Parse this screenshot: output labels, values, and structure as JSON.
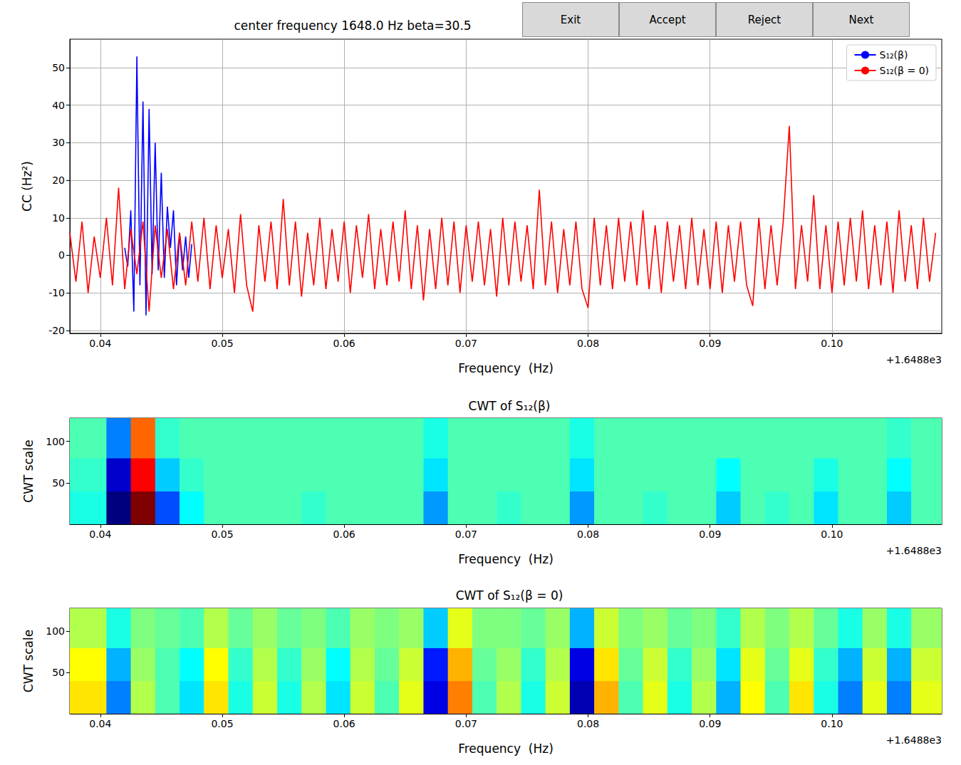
{
  "chart_data": [
    {
      "type": "line",
      "title": "center frequency 1648.0 Hz beta=30.5",
      "xlabel": "Frequency  (Hz)",
      "ylabel": "CC (Hz²)",
      "annotations": [
        "+1.6488e3"
      ],
      "xlim": [
        0.0375,
        0.109
      ],
      "xticks": [
        0.04,
        0.05,
        0.06,
        0.07,
        0.08,
        0.09,
        {
          "value": 0.1,
          "label": "0.10"
        }
      ],
      "ylim": [
        -20.8,
        57.6
      ],
      "yticks": [
        -20,
        -10,
        0,
        10,
        20,
        30,
        40,
        50
      ],
      "grid": true,
      "legend": "upper right",
      "series": [
        {
          "name": "S₁₂(β)",
          "color": "#0000ff",
          "x": [
            0.042,
            0.04225,
            0.0425,
            0.04275,
            0.043,
            0.04325,
            0.0435,
            0.04375,
            0.044,
            0.04425,
            0.0445,
            0.04475,
            0.045,
            0.04525,
            0.0455,
            0.04575,
            0.046,
            0.04625,
            0.0465,
            0.04675,
            0.047,
            0.04725,
            0.0475
          ],
          "values": [
            2,
            -3,
            12,
            -15,
            53,
            -8,
            41,
            -16,
            39,
            -5,
            30,
            -4,
            22,
            -6,
            13,
            2,
            12,
            -8,
            6,
            -4,
            5,
            -6,
            3
          ]
        },
        {
          "name": "S₁₂(β = 0)",
          "color": "#ff0000",
          "x": [
            0.0375,
            0.038,
            0.0385,
            0.039,
            0.0395,
            0.04,
            0.0405,
            0.041,
            0.0415,
            0.042,
            0.0425,
            0.043,
            0.0435,
            0.044,
            0.0445,
            0.045,
            0.0455,
            0.046,
            0.0465,
            0.047,
            0.0475,
            0.048,
            0.0485,
            0.049,
            0.0495,
            0.05,
            0.0505,
            0.051,
            0.0515,
            0.052,
            0.0525,
            0.053,
            0.0535,
            0.054,
            0.0545,
            0.055,
            0.0555,
            0.056,
            0.0565,
            0.057,
            0.0575,
            0.058,
            0.0585,
            0.059,
            0.0595,
            0.06,
            0.0605,
            0.061,
            0.0615,
            0.062,
            0.0625,
            0.063,
            0.0635,
            0.064,
            0.0645,
            0.065,
            0.0655,
            0.066,
            0.0665,
            0.067,
            0.0675,
            0.068,
            0.0685,
            0.069,
            0.0695,
            0.07,
            0.0705,
            0.071,
            0.0715,
            0.072,
            0.0725,
            0.073,
            0.0735,
            0.074,
            0.0745,
            0.075,
            0.0755,
            0.076,
            0.0765,
            0.077,
            0.0775,
            0.078,
            0.0785,
            0.079,
            0.0795,
            0.08,
            0.0805,
            0.081,
            0.0815,
            0.082,
            0.0825,
            0.083,
            0.0835,
            0.084,
            0.0845,
            0.085,
            0.0855,
            0.086,
            0.0865,
            0.087,
            0.0875,
            0.088,
            0.0885,
            0.089,
            0.0895,
            0.09,
            0.0905,
            0.091,
            0.0915,
            0.092,
            0.0925,
            0.093,
            0.0935,
            0.094,
            0.0945,
            0.095,
            0.0955,
            0.096,
            0.0965,
            0.097,
            0.0975,
            0.098,
            0.0985,
            0.099,
            0.0995,
            0.1,
            0.1005,
            0.101,
            0.1015,
            0.102,
            0.1025,
            0.103,
            0.1035,
            0.104,
            0.1045,
            0.105,
            0.1055,
            0.106,
            0.1065,
            0.107,
            0.1075,
            0.108,
            0.1085
          ],
          "values": [
            6,
            -7,
            9,
            -10,
            5,
            -6,
            10,
            -8,
            18,
            -9,
            7,
            -5,
            9,
            -15,
            8,
            -6,
            7,
            -9,
            6,
            -8,
            9,
            -7,
            10,
            -9,
            8,
            -6,
            7,
            -10,
            11,
            -8,
            -15,
            8,
            -7,
            9,
            -9,
            15,
            -8,
            9,
            -11,
            6,
            -8,
            10,
            -9,
            7,
            -7,
            9,
            -10,
            8,
            -6,
            11,
            -9,
            7,
            -8,
            9,
            -7,
            12,
            -9,
            8,
            -12,
            7,
            -9,
            10,
            -8,
            9,
            -10,
            8,
            -7,
            9,
            -8,
            7,
            -11,
            10,
            -8,
            9,
            -7,
            8,
            -9,
            17.5,
            -8,
            9,
            -10,
            7,
            -8,
            9,
            -9,
            -14,
            10,
            -8,
            8,
            -9,
            10,
            -7,
            9,
            -8,
            12,
            -9,
            8,
            -10,
            9,
            -7,
            8,
            -9,
            10,
            -8,
            7,
            -9,
            9,
            -10,
            8,
            -7,
            9,
            -8,
            -13.5,
            10,
            -9,
            8,
            -8,
            9,
            34.5,
            -9,
            8,
            -7,
            16,
            -9,
            8,
            -10,
            9,
            -8,
            10,
            -7,
            12,
            -9,
            8,
            -8,
            9,
            -10,
            12,
            -7,
            8,
            -9,
            10,
            -7,
            6
          ]
        }
      ]
    },
    {
      "type": "heatmap",
      "title": "CWT of S₁₂(β)",
      "xlabel": "Frequency  (Hz)",
      "ylabel": "CWT scale",
      "annotations": [
        "+1.6488e3"
      ],
      "xlim": [
        0.0375,
        0.109
      ],
      "xticks": [
        0.04,
        0.05,
        0.06,
        0.07,
        0.08,
        0.09,
        {
          "value": 0.1,
          "label": "0.10"
        }
      ],
      "ylim": [
        0,
        128
      ],
      "yticks": [
        50,
        100
      ],
      "grid": false,
      "x_edges": [
        0.0375,
        0.0405,
        0.0425,
        0.0445,
        0.0465,
        0.0485,
        0.0505,
        0.0525,
        0.0545,
        0.0565,
        0.0585,
        0.0605,
        0.0625,
        0.0645,
        0.0665,
        0.0685,
        0.0705,
        0.0725,
        0.0745,
        0.0765,
        0.0785,
        0.0805,
        0.0825,
        0.0845,
        0.0865,
        0.0885,
        0.0905,
        0.0925,
        0.0945,
        0.0965,
        0.0985,
        0.1005,
        0.1025,
        0.1045,
        0.1065,
        0.109
      ],
      "y_edges": [
        0,
        40,
        80,
        128
      ],
      "value_range": [
        -1,
        1
      ],
      "cells": [
        [
          -0.2,
          -1,
          1,
          -0.6,
          -0.25,
          -0.1,
          -0.1,
          -0.1,
          -0.1,
          -0.15,
          -0.1,
          -0.1,
          -0.1,
          -0.1,
          -0.45,
          -0.1,
          -0.1,
          -0.15,
          -0.1,
          -0.1,
          -0.45,
          -0.1,
          -0.1,
          -0.15,
          -0.1,
          -0.1,
          -0.35,
          -0.1,
          -0.15,
          -0.1,
          -0.3,
          -0.1,
          -0.1,
          -0.35,
          -0.1
        ],
        [
          -0.15,
          -0.85,
          0.75,
          -0.35,
          -0.15,
          -0.1,
          -0.1,
          -0.1,
          -0.1,
          -0.1,
          -0.1,
          -0.1,
          -0.1,
          -0.1,
          -0.3,
          -0.1,
          -0.1,
          -0.1,
          -0.1,
          -0.1,
          -0.3,
          -0.1,
          -0.1,
          -0.1,
          -0.1,
          -0.1,
          -0.25,
          -0.1,
          -0.1,
          -0.1,
          -0.2,
          -0.1,
          -0.1,
          -0.25,
          -0.1
        ],
        [
          -0.1,
          -0.5,
          0.55,
          -0.15,
          -0.1,
          -0.1,
          -0.1,
          -0.1,
          -0.1,
          -0.1,
          -0.1,
          -0.1,
          -0.1,
          -0.1,
          -0.2,
          -0.1,
          -0.1,
          -0.1,
          -0.1,
          -0.1,
          -0.2,
          -0.1,
          -0.1,
          -0.1,
          -0.1,
          -0.1,
          -0.1,
          -0.1,
          -0.1,
          -0.1,
          -0.1,
          -0.1,
          -0.1,
          -0.15,
          -0.1
        ]
      ]
    },
    {
      "type": "heatmap",
      "title": "CWT of S₁₂(β = 0)",
      "xlabel": "Frequency  (Hz)",
      "ylabel": "CWT scale",
      "annotations": [
        "+1.6488e3"
      ],
      "xlim": [
        0.0375,
        0.109
      ],
      "xticks": [
        0.04,
        0.05,
        0.06,
        0.07,
        0.08,
        0.09,
        {
          "value": 0.1,
          "label": "0.10"
        }
      ],
      "ylim": [
        0,
        128
      ],
      "yticks": [
        50,
        100
      ],
      "grid": false,
      "x_edges": [
        0.0375,
        0.0405,
        0.0425,
        0.0445,
        0.0465,
        0.0485,
        0.0505,
        0.0525,
        0.0545,
        0.0565,
        0.0585,
        0.0605,
        0.0625,
        0.0645,
        0.0665,
        0.0685,
        0.0705,
        0.0725,
        0.0745,
        0.0765,
        0.0785,
        0.0805,
        0.0825,
        0.0845,
        0.0865,
        0.0885,
        0.0905,
        0.0925,
        0.0945,
        0.0965,
        0.0985,
        0.1005,
        0.1025,
        0.1045,
        0.1065,
        0.109
      ],
      "y_edges": [
        0,
        40,
        80,
        128
      ],
      "value_range": [
        -1,
        1
      ],
      "cells": [
        [
          0.3,
          -0.5,
          0.1,
          -0.1,
          -0.3,
          0.3,
          -0.2,
          0.15,
          -0.2,
          0.1,
          -0.3,
          0.15,
          -0.1,
          0.2,
          -0.8,
          0.5,
          -0.1,
          0.1,
          -0.2,
          0.15,
          -0.9,
          0.4,
          -0.1,
          0.2,
          -0.2,
          0.1,
          -0.4,
          0.25,
          -0.1,
          0.3,
          -0.2,
          -0.5,
          0.2,
          -0.5,
          0.2
        ],
        [
          0.25,
          -0.4,
          0.05,
          -0.1,
          -0.25,
          0.25,
          -0.15,
          0.1,
          -0.15,
          0.05,
          -0.25,
          0.1,
          -0.05,
          0.15,
          -0.7,
          0.4,
          -0.05,
          0.05,
          -0.15,
          0.1,
          -0.8,
          0.3,
          -0.05,
          0.15,
          -0.15,
          0.05,
          -0.3,
          0.2,
          -0.05,
          0.2,
          -0.15,
          -0.4,
          0.15,
          -0.4,
          0.15
        ],
        [
          0.1,
          -0.2,
          0,
          -0.05,
          -0.1,
          0.1,
          -0.05,
          0.05,
          -0.05,
          0,
          -0.1,
          0.05,
          0,
          0.05,
          -0.35,
          0.2,
          0,
          0,
          -0.05,
          0.05,
          -0.4,
          0.15,
          0,
          0.05,
          -0.05,
          0,
          -0.15,
          0.1,
          0,
          0.1,
          -0.05,
          -0.2,
          0.05,
          -0.2,
          0.05
        ]
      ]
    }
  ],
  "buttons": [
    "Exit",
    "Accept",
    "Reject",
    "Next"
  ]
}
